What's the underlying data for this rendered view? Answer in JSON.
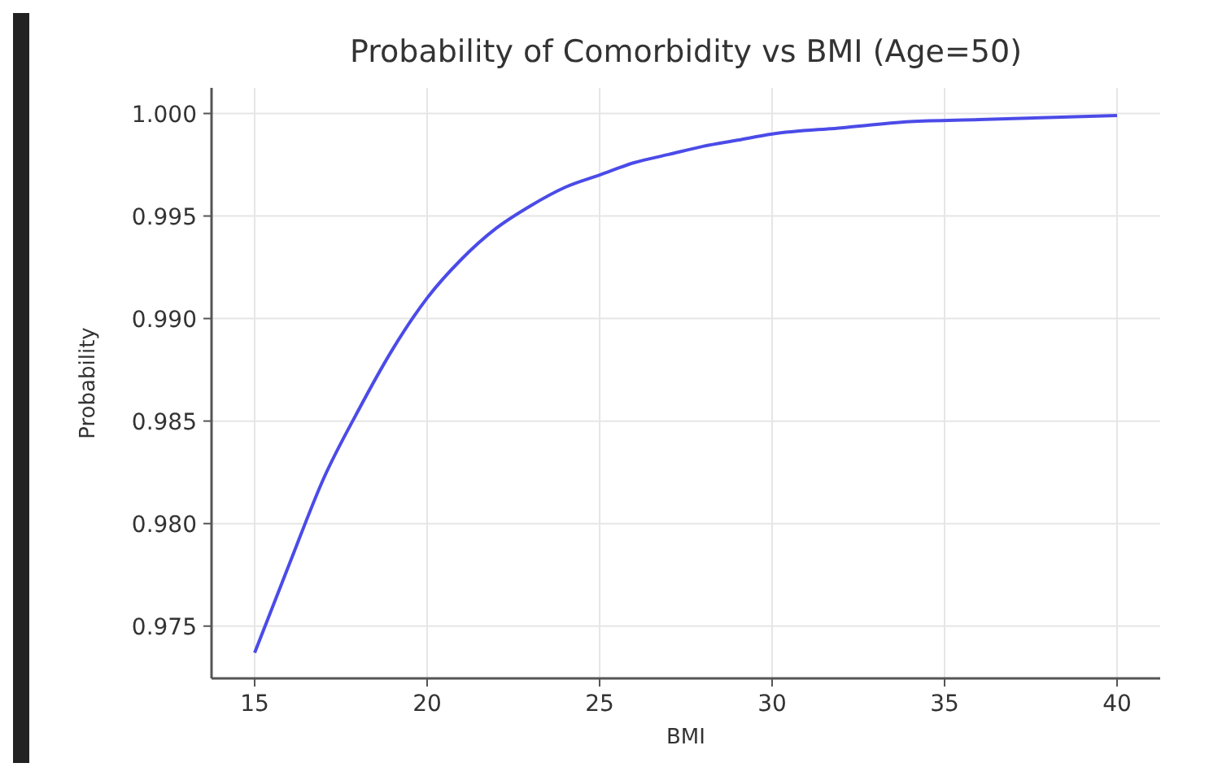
{
  "chart_data": {
    "type": "line",
    "title": "Probability of Comorbidity vs BMI (Age=50)",
    "xlabel": "BMI",
    "ylabel": "Probability",
    "x": [
      15,
      16,
      17,
      18,
      19,
      20,
      21,
      22,
      23,
      24,
      25,
      26,
      27,
      28,
      29,
      30,
      32,
      34,
      36,
      38,
      40
    ],
    "series": [
      {
        "color": "#4b4be8",
        "values": [
          0.9737,
          0.978,
          0.9822,
          0.9855,
          0.9885,
          0.991,
          0.9929,
          0.9944,
          0.9955,
          0.9964,
          0.997,
          0.9976,
          0.998,
          0.9984,
          0.9987,
          0.999,
          0.9993,
          0.9996,
          0.9997,
          0.9998,
          0.9999
        ]
      }
    ],
    "xlim": [
      13.75,
      41.25
    ],
    "xticks": [
      15,
      20,
      25,
      30,
      35,
      40
    ],
    "ylim": [
      0.97245,
      1.00125
    ],
    "yticks": [
      {
        "value": 0.975,
        "label": "0.975"
      },
      {
        "value": 0.98,
        "label": "0.980"
      },
      {
        "value": 0.985,
        "label": "0.985"
      },
      {
        "value": 0.99,
        "label": "0.990"
      },
      {
        "value": 0.995,
        "label": "0.995"
      },
      {
        "value": 1,
        "label": "1.000"
      }
    ],
    "grid": true,
    "marker": "none",
    "line_style": "solid"
  }
}
